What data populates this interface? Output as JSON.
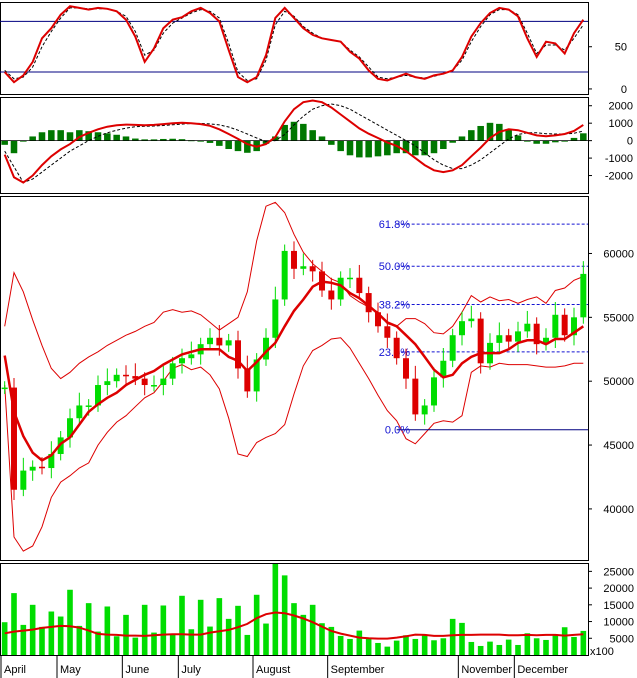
{
  "chart_data": [
    {
      "panel": "stochastic",
      "type": "line",
      "ylim": [
        0,
        100
      ],
      "yticks": [
        "50",
        "0"
      ],
      "levels": [
        80,
        20
      ],
      "series": [
        {
          "role": "k",
          "values": [
            20,
            8,
            16,
            32,
            60,
            72,
            88,
            98,
            96,
            94,
            96,
            95,
            92,
            82,
            62,
            32,
            48,
            72,
            82,
            85,
            92,
            96,
            90,
            80,
            46,
            14,
            8,
            14,
            40,
            84,
            96,
            84,
            72,
            64,
            60,
            58,
            56,
            44,
            36,
            22,
            12,
            10,
            14,
            18,
            14,
            12,
            16,
            18,
            22,
            38,
            62,
            78,
            90,
            96,
            94,
            86,
            60,
            38,
            56,
            54,
            42,
            66,
            82
          ]
        },
        {
          "role": "d",
          "values": [
            22,
            12,
            14,
            26,
            50,
            68,
            84,
            96,
            96,
            95,
            95,
            95,
            92,
            86,
            68,
            40,
            46,
            66,
            78,
            84,
            90,
            94,
            92,
            84,
            54,
            20,
            10,
            12,
            34,
            76,
            92,
            86,
            74,
            66,
            60,
            58,
            56,
            46,
            38,
            26,
            14,
            12,
            14,
            16,
            14,
            13,
            15,
            18,
            22,
            34,
            56,
            74,
            88,
            94,
            94,
            88,
            66,
            42,
            52,
            52,
            46,
            60,
            76
          ]
        }
      ]
    },
    {
      "panel": "macd",
      "type": "bar-line",
      "ylim": [
        -3000,
        2500
      ],
      "yticks": [
        "2000",
        "1000",
        "0",
        "-1000",
        "-2000"
      ],
      "series": [
        {
          "role": "macd",
          "values": [
            -800,
            -2100,
            -2400,
            -2000,
            -1400,
            -900,
            -500,
            -200,
            200,
            450,
            650,
            800,
            880,
            920,
            900,
            880,
            900,
            950,
            1000,
            1020,
            1000,
            950,
            850,
            650,
            380,
            100,
            -200,
            -350,
            -200,
            200,
            1100,
            1800,
            2200,
            2300,
            2200,
            1900,
            1500,
            1100,
            700,
            400,
            150,
            -100,
            -300,
            -600,
            -1000,
            -1400,
            -1700,
            -1800,
            -1700,
            -1400,
            -900,
            -400,
            150,
            500,
            650,
            600,
            450,
            300,
            250,
            300,
            380,
            550,
            900
          ]
        },
        {
          "role": "signal",
          "values": [
            -600,
            -1500,
            -2400,
            -2200,
            -1800,
            -1400,
            -1000,
            -600,
            -300,
            0,
            250,
            450,
            600,
            720,
            800,
            820,
            840,
            870,
            910,
            950,
            980,
            990,
            960,
            900,
            780,
            600,
            380,
            150,
            -50,
            0,
            350,
            900,
            1400,
            1800,
            2000,
            2100,
            2000,
            1800,
            1500,
            1200,
            900,
            600,
            300,
            0,
            -300,
            -700,
            -1100,
            -1400,
            -1600,
            -1600,
            -1400,
            -1100,
            -700,
            -300,
            100,
            350,
            450,
            450,
            400,
            380,
            380,
            420,
            550
          ]
        }
      ]
    },
    {
      "panel": "price",
      "type": "candlestick",
      "ylim": [
        36000,
        64500
      ],
      "yticks": [
        "60000",
        "55000",
        "50000",
        "45000",
        "40000"
      ],
      "fibonacci": [
        {
          "label": "61.8%",
          "value": 62300
        },
        {
          "label": "50.0%",
          "value": 59000
        },
        {
          "label": "38.2%",
          "value": 56000
        },
        {
          "label": "23.6%",
          "value": 52300
        },
        {
          "label": "0.0%",
          "value": 46200
        }
      ],
      "close": [
        49500,
        41500,
        43000,
        43300,
        43200,
        44300,
        45600,
        47100,
        48100,
        48100,
        49700,
        50000,
        50500,
        50400,
        50200,
        49700,
        49700,
        50200,
        51400,
        51800,
        52100,
        52900,
        53400,
        52800,
        53200,
        51000,
        49200,
        51700,
        53400,
        56400,
        60200,
        58800,
        59000,
        58600,
        57100,
        56400,
        58100,
        58100,
        56900,
        55400,
        54300,
        53400,
        51800,
        50200,
        47400,
        48100,
        50300,
        51600,
        53600,
        54700,
        54900,
        51400,
        53000,
        53600,
        53100,
        53900,
        54500,
        52900,
        53400,
        55200,
        53600,
        55000,
        58400
      ],
      "ma20": [
        52000,
        47600,
        45700,
        44400,
        43800,
        44200,
        45100,
        45600,
        46600,
        47600,
        48200,
        48700,
        49100,
        49700,
        50100,
        50500,
        50800,
        51300,
        51700,
        52100,
        52300,
        52500,
        52500,
        52500,
        51900,
        51600,
        50800,
        51500,
        52300,
        53000,
        54300,
        55500,
        56400,
        57400,
        57800,
        57700,
        57500,
        56900,
        56500,
        55900,
        55300,
        54600,
        54300,
        53600,
        52900,
        51900,
        50900,
        50300,
        50500,
        51400,
        51900,
        52200,
        52200,
        52200,
        52500,
        53000,
        53200,
        53200,
        52900,
        53300,
        53300,
        53800,
        54300
      ],
      "bb_upper": [
        54300,
        58500,
        57000,
        54800,
        52800,
        51000,
        50200,
        50700,
        51400,
        51900,
        52300,
        52800,
        53200,
        53600,
        53900,
        54300,
        54600,
        55400,
        55600,
        55400,
        55500,
        55200,
        54600,
        54000,
        54500,
        55000,
        57000,
        61000,
        63700,
        64000,
        63200,
        61500,
        60100,
        59200,
        58600,
        58000,
        57700,
        56700,
        56200,
        55800,
        55400,
        54500,
        54300,
        54900,
        54900,
        54500,
        53800,
        53700,
        54300,
        55400,
        56700,
        56200,
        56600,
        56300,
        56400,
        56100,
        56400,
        56600,
        56100,
        57100,
        57300,
        57900,
        58200
      ],
      "bb_lower": [
        49700,
        37800,
        36700,
        37100,
        38600,
        40900,
        42100,
        42600,
        43200,
        43600,
        45000,
        46000,
        46800,
        47300,
        48000,
        48700,
        49100,
        50000,
        51000,
        51300,
        50900,
        51100,
        50500,
        49400,
        47100,
        44300,
        44100,
        45200,
        45600,
        45900,
        46600,
        49000,
        51200,
        52400,
        52800,
        53300,
        53400,
        52600,
        51400,
        50200,
        48900,
        47700,
        46900,
        45500,
        45100,
        45900,
        46700,
        46900,
        46800,
        47300,
        50700,
        51200,
        51100,
        51400,
        51300,
        51300,
        51300,
        51200,
        51100,
        51100,
        51200,
        51400,
        51400
      ]
    },
    {
      "panel": "volume",
      "type": "bar",
      "unit_label": "x100",
      "ylim": [
        0,
        27500
      ],
      "yticks": [
        "25000",
        "20000",
        "15000",
        "10000",
        "5000"
      ],
      "volume": [
        9800,
        18500,
        9000,
        15000,
        8400,
        13000,
        11500,
        19500,
        8700,
        15500,
        7000,
        14500,
        5600,
        12000,
        5200,
        15000,
        6700,
        14800,
        6000,
        17700,
        7700,
        16500,
        8500,
        17000,
        10800,
        14700,
        6000,
        18000,
        9400,
        27200,
        23800,
        15500,
        12000,
        15000,
        9500,
        8400,
        5700,
        4800,
        7300,
        4800,
        3600,
        2500,
        4300,
        5900,
        4800,
        5900,
        4400,
        5000,
        10800,
        9600,
        3900,
        2700,
        4000,
        3000,
        4600,
        3000,
        6500,
        5000,
        4500,
        6200,
        8300,
        5400,
        7200
      ],
      "vol_ma": [
        6500,
        7000,
        7300,
        7600,
        8100,
        8400,
        8700,
        8600,
        8200,
        7300,
        6300,
        6100,
        6000,
        5800,
        5800,
        5700,
        5900,
        6100,
        6200,
        6200,
        6100,
        6100,
        6700,
        7100,
        7500,
        8300,
        9300,
        11000,
        12200,
        12700,
        12500,
        11800,
        10900,
        9800,
        8500,
        7200,
        6400,
        5800,
        5200,
        5000,
        4900,
        4900,
        5200,
        5600,
        6100,
        6000,
        5700,
        5700,
        5900,
        6000,
        6000,
        6100,
        6100,
        6100,
        5900,
        5900,
        6000,
        5900,
        6000,
        6000,
        5800,
        6000,
        6200
      ]
    }
  ],
  "x_axis_months": [
    "April",
    "May",
    "June",
    "July",
    "August",
    "September",
    "November",
    "December"
  ],
  "colors": {
    "rise": "#00dd00",
    "fall": "#dd0000",
    "line_red": "#dd0000",
    "histogram": "#007700",
    "fib": "#1414d2",
    "level_line": "#000080"
  }
}
